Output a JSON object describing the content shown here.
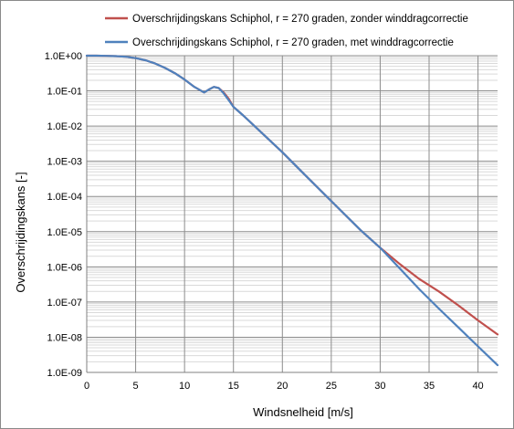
{
  "chart_data": {
    "type": "line",
    "title": "",
    "xlabel": "Windsnelheid [m/s]",
    "ylabel": "Overschrijdingskans [-]",
    "xlim": [
      0,
      42
    ],
    "ylim": [
      1e-09,
      1
    ],
    "y_scale": "log",
    "x_ticks": [
      0,
      5,
      10,
      15,
      20,
      25,
      30,
      35,
      40
    ],
    "x_tick_labels": [
      "0",
      "5",
      "10",
      "15",
      "20",
      "25",
      "30",
      "35",
      "40"
    ],
    "y_ticks": [
      1,
      0.1,
      0.01,
      0.001,
      0.0001,
      1e-05,
      1e-06,
      1e-07,
      1e-08,
      1e-09
    ],
    "y_tick_labels": [
      "1.0E+00",
      "1.0E-01",
      "1.0E-02",
      "1.0E-03",
      "1.0E-04",
      "1.0E-05",
      "1.0E-06",
      "1.0E-07",
      "1.0E-08",
      "1.0E-09"
    ],
    "grid": {
      "major": true,
      "minor_y": true
    },
    "legend_position": "top",
    "series": [
      {
        "name": "Overschrijdingskans Schiphol, r = 270 graden, zonder winddragcorrectie",
        "color": "#c0504d",
        "x": [
          0,
          1,
          2,
          3,
          4,
          5,
          6,
          7,
          8,
          9,
          10,
          11,
          12,
          12.5,
          13,
          13.5,
          14,
          14.5,
          15,
          16,
          18,
          20,
          22,
          24,
          26,
          28,
          30,
          32,
          34,
          36,
          38,
          40,
          42
        ],
        "y": [
          1.0,
          1.0,
          0.99,
          0.97,
          0.93,
          0.85,
          0.74,
          0.6,
          0.45,
          0.32,
          0.21,
          0.13,
          0.09,
          0.11,
          0.13,
          0.12,
          0.09,
          0.06,
          0.035,
          0.02,
          0.006,
          0.0018,
          0.0005,
          0.00014,
          3.9e-05,
          1.1e-05,
          3.5e-06,
          1.2e-06,
          4.5e-07,
          2e-07,
          8e-08,
          3e-08,
          1.2e-08
        ]
      },
      {
        "name": "Overschrijdingskans Schiphol, r = 270 graden, met winddragcorrectie",
        "color": "#4f81bd",
        "x": [
          0,
          1,
          2,
          3,
          4,
          5,
          6,
          7,
          8,
          9,
          10,
          11,
          12,
          12.5,
          13,
          13.5,
          14,
          14.5,
          15,
          16,
          18,
          20,
          22,
          24,
          26,
          28,
          30,
          32,
          34,
          36,
          38,
          40,
          42
        ],
        "y": [
          1.0,
          1.0,
          0.99,
          0.97,
          0.93,
          0.85,
          0.74,
          0.6,
          0.45,
          0.32,
          0.21,
          0.13,
          0.09,
          0.11,
          0.13,
          0.12,
          0.085,
          0.055,
          0.035,
          0.02,
          0.006,
          0.0018,
          0.0005,
          0.00014,
          3.9e-05,
          1.1e-05,
          3.5e-06,
          9e-07,
          2.3e-07,
          6.5e-08,
          1.9e-08,
          5.5e-09,
          1.6e-09
        ]
      }
    ]
  }
}
